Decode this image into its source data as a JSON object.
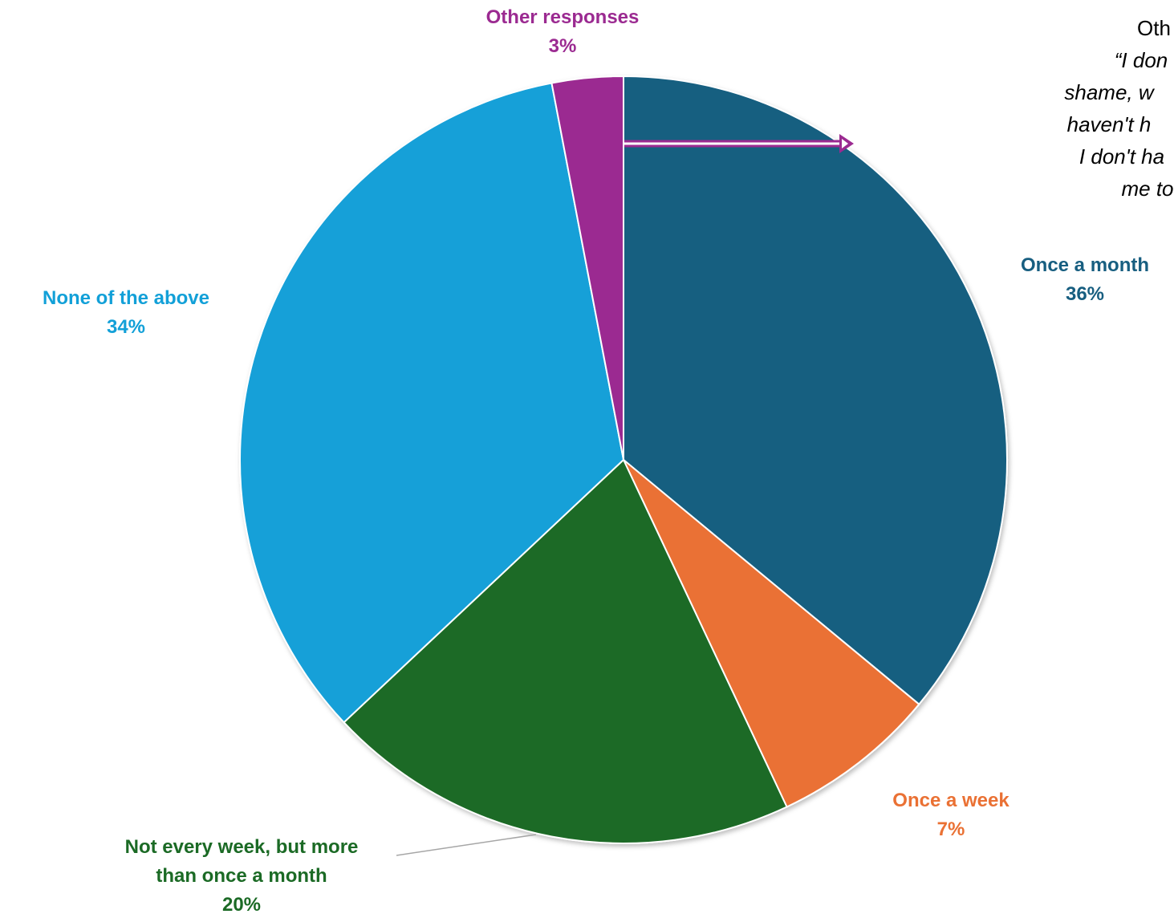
{
  "chart_data": {
    "type": "pie",
    "title": "",
    "start_angle_deg": 0,
    "direction": "clockwise",
    "slices": [
      {
        "label": "Once a month",
        "value": 36,
        "value_label": "36%",
        "color": "#175e80"
      },
      {
        "label": "Once a week",
        "value": 7,
        "value_label": "7%",
        "color": "#ea7134"
      },
      {
        "label": "Not every week, but more than once a month",
        "label_lines": [
          "Not every week, but more",
          "than once a month"
        ],
        "value": 20,
        "value_label": "20%",
        "color": "#1b6a25"
      },
      {
        "label": "None of the above",
        "value": 34,
        "value_label": "34%",
        "color": "#12a0d8"
      },
      {
        "label": "Other responses",
        "value": 3,
        "value_label": "3%",
        "color": "#9b2a91"
      }
    ],
    "annotation": {
      "heading": "Oth",
      "quote_lines": [
        "“I don",
        "shame, w",
        "haven't h",
        "I don't ha",
        "me to"
      ]
    }
  }
}
